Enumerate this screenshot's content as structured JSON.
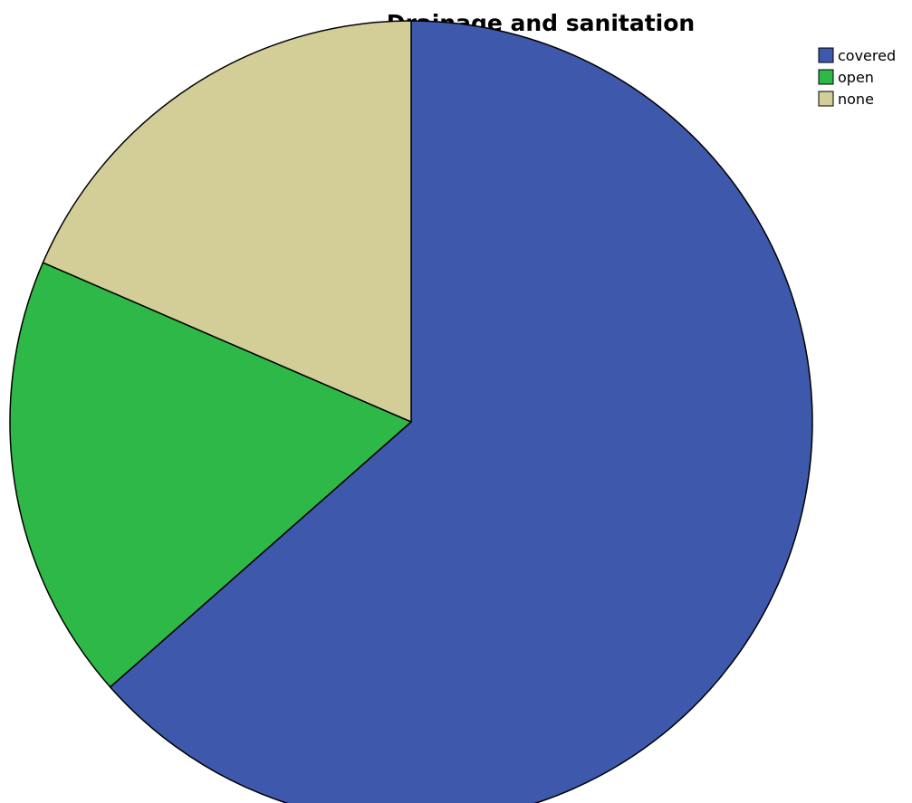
{
  "chart_data": {
    "type": "pie",
    "title": "Drainage and sanitation",
    "start_angle_deg": 0,
    "direction": "clockwise",
    "slices": [
      {
        "label": "covered",
        "value": 63.5,
        "color": "#3e58ac"
      },
      {
        "label": "open",
        "value": 18.0,
        "color": "#2eb848"
      },
      {
        "label": "none",
        "value": 18.5,
        "color": "#d3ce97"
      }
    ],
    "legend_position": "top-right",
    "slice_border_color": "#000000"
  }
}
